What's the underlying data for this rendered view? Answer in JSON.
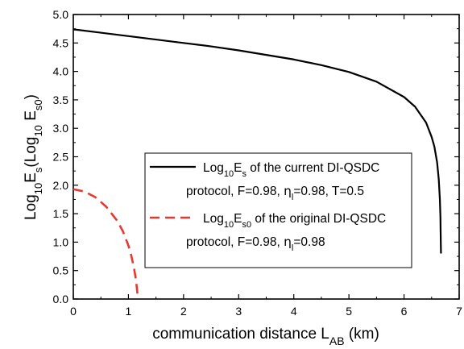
{
  "chart_data": {
    "type": "line",
    "xlabel": {
      "main": "communication distance L",
      "sub": "AB",
      "unit": " (km)"
    },
    "ylabel": {
      "p1": "Log",
      "p1sub": "10",
      "p2": "E",
      "p2sub": "s",
      "p3": "(Log",
      "p3sub": "10",
      "p4": " E",
      "p4sub": "s0",
      "p5": ")"
    },
    "xlim": [
      0,
      7
    ],
    "ylim": [
      0.0,
      5.0
    ],
    "xticks": [
      "0",
      "1",
      "2",
      "3",
      "4",
      "5",
      "6",
      "7"
    ],
    "yticks": [
      "0.0",
      "0.5",
      "1.0",
      "1.5",
      "2.0",
      "2.5",
      "3.0",
      "3.5",
      "4.0",
      "4.5",
      "5.0"
    ],
    "grid": false,
    "legend_position": "center-right",
    "series": [
      {
        "color": "#000000",
        "style": "solid",
        "legend": {
          "line1": {
            "a": "Log",
            "asub": "10",
            "b": "E",
            "bsub": "s",
            "c": " of the current DI-QSDC"
          },
          "line2": {
            "a": "protocol,  F=0.98, ",
            "eta": "η",
            "etasub": "l",
            "b": "=0.98, T=0.5"
          }
        },
        "x": [
          0,
          0.5,
          1.0,
          1.5,
          2.0,
          2.5,
          3.0,
          3.5,
          4.0,
          4.5,
          5.0,
          5.5,
          6.0,
          6.2,
          6.4,
          6.5,
          6.55,
          6.6,
          6.63,
          6.65,
          6.66,
          6.665,
          6.67
        ],
        "y": [
          4.74,
          4.68,
          4.62,
          4.56,
          4.5,
          4.44,
          4.37,
          4.29,
          4.21,
          4.11,
          3.99,
          3.82,
          3.55,
          3.38,
          3.1,
          2.85,
          2.68,
          2.4,
          2.1,
          1.75,
          1.45,
          1.1,
          0.8
        ]
      },
      {
        "color": "#e8372d",
        "style": "dashed",
        "legend": {
          "line1": {
            "a": "Log",
            "asub": "10",
            "b": "E",
            "bsub": "s0",
            "c": " of the original DI-QSDC"
          },
          "line2": {
            "a": "protocol, F=0.98, ",
            "eta": "η",
            "etasub": "l",
            "b": "=0.98"
          }
        },
        "x": [
          0,
          0.2,
          0.4,
          0.6,
          0.8,
          0.9,
          1.0,
          1.05,
          1.1,
          1.13,
          1.15,
          1.165,
          1.17
        ],
        "y": [
          1.93,
          1.89,
          1.79,
          1.62,
          1.37,
          1.19,
          0.94,
          0.77,
          0.55,
          0.38,
          0.22,
          0.08,
          0.0
        ]
      }
    ]
  }
}
